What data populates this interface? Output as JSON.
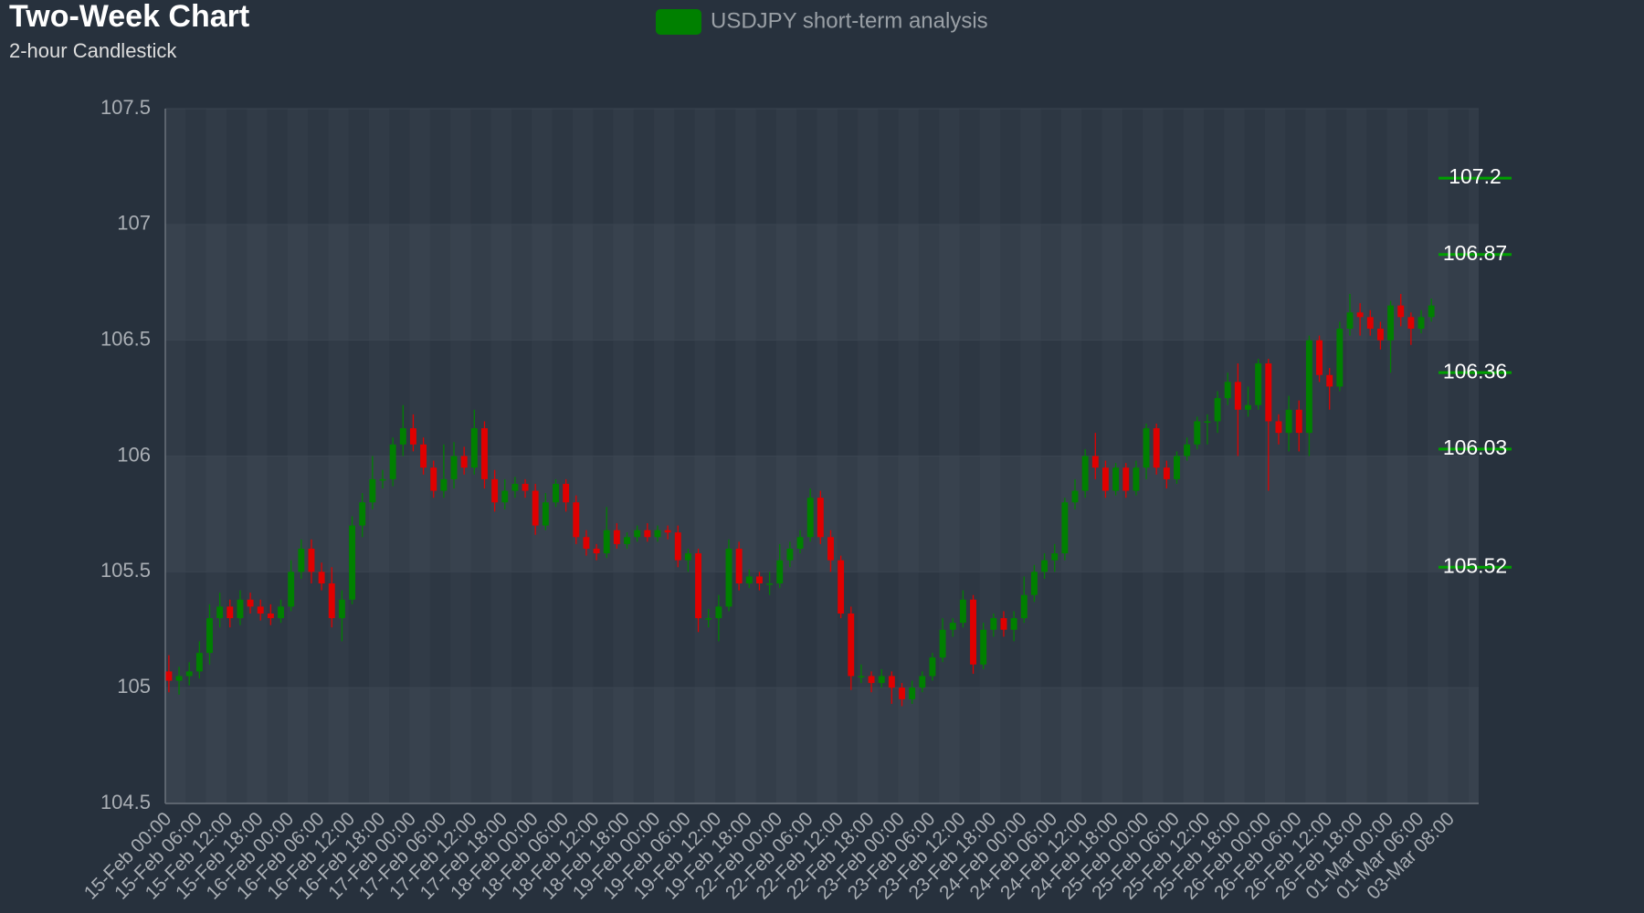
{
  "chart_data": {
    "type": "candlestick",
    "title": "Two-Week Chart",
    "subtitle": "2-hour Candlestick",
    "name": "USDJPY short-term analysis",
    "up_color": "#008000",
    "down_color": "#e00000",
    "level_color": "#00a000",
    "grid": true,
    "ylim": [
      104.5,
      107.5
    ],
    "yticks": [
      104.5,
      105,
      105.5,
      106,
      106.5,
      107,
      107.5
    ],
    "levels": [
      107.2,
      106.87,
      106.36,
      106.03,
      105.52
    ],
    "categories": [
      "15-Feb 00:00",
      null,
      null,
      "15-Feb 06:00",
      null,
      null,
      "15-Feb 12:00",
      null,
      null,
      "15-Feb 18:00",
      null,
      null,
      "16-Feb 00:00",
      null,
      null,
      "16-Feb 06:00",
      null,
      null,
      "16-Feb 12:00",
      null,
      null,
      "16-Feb 18:00",
      null,
      null,
      "17-Feb 00:00",
      null,
      null,
      "17-Feb 06:00",
      null,
      null,
      "17-Feb 12:00",
      null,
      null,
      "17-Feb 18:00",
      null,
      null,
      "18-Feb 00:00",
      null,
      null,
      "18-Feb 06:00",
      null,
      null,
      "18-Feb 12:00",
      null,
      null,
      "18-Feb 18:00",
      null,
      null,
      "19-Feb 00:00",
      null,
      null,
      "19-Feb 06:00",
      null,
      null,
      "19-Feb 12:00",
      null,
      null,
      "19-Feb 18:00",
      null,
      null,
      "22-Feb 00:00",
      null,
      null,
      "22-Feb 06:00",
      null,
      null,
      "22-Feb 12:00",
      null,
      null,
      "22-Feb 18:00",
      null,
      null,
      "23-Feb 00:00",
      null,
      null,
      "23-Feb 06:00",
      null,
      null,
      "23-Feb 12:00",
      null,
      null,
      "23-Feb 18:00",
      null,
      null,
      "24-Feb 00:00",
      null,
      null,
      "24-Feb 06:00",
      null,
      null,
      "24-Feb 12:00",
      null,
      null,
      "24-Feb 18:00",
      null,
      null,
      "25-Feb 00:00",
      null,
      null,
      "25-Feb 06:00",
      null,
      null,
      "25-Feb 12:00",
      null,
      null,
      "25-Feb 18:00",
      null,
      null,
      "26-Feb 00:00",
      null,
      null,
      "26-Feb 06:00",
      null,
      null,
      "26-Feb 12:00",
      null,
      null,
      "26-Feb 18:00",
      null,
      null,
      "01-Mar 00:00",
      null,
      null,
      "01-Mar 06:00",
      null,
      null,
      "03-Mar 08:00",
      null,
      null
    ],
    "open": [
      105.07,
      105.03,
      105.05,
      105.07,
      105.15,
      105.3,
      105.35,
      105.3,
      105.38,
      105.35,
      105.32,
      105.3,
      105.35,
      105.5,
      105.6,
      105.5,
      105.45,
      105.3,
      105.38,
      105.7,
      105.8,
      105.9,
      105.9,
      106.05,
      106.12,
      106.05,
      105.95,
      105.85,
      105.9,
      106.0,
      105.95,
      106.12,
      105.9,
      105.8,
      105.85,
      105.88,
      105.85,
      105.7,
      105.8,
      105.88,
      105.8,
      105.65,
      105.6,
      105.58,
      105.68,
      105.62,
      105.65,
      105.68,
      105.65,
      105.68,
      105.67,
      105.55,
      105.58,
      105.3,
      105.3,
      105.35,
      105.6,
      105.45,
      105.48,
      105.45,
      105.45,
      105.55,
      105.6,
      105.65,
      105.82,
      105.65,
      105.55,
      105.32,
      105.05,
      105.05,
      105.02,
      105.05,
      105.0,
      104.95,
      105.0,
      105.05,
      105.13,
      105.25,
      105.28,
      105.38,
      105.1,
      105.25,
      105.3,
      105.25,
      105.3,
      105.4,
      105.5,
      105.55,
      105.58,
      105.8,
      105.85,
      106.0,
      105.95,
      105.85,
      105.95,
      105.85,
      105.95,
      106.12,
      105.95,
      105.9,
      106.0,
      106.05,
      106.15,
      106.15,
      106.25,
      106.32,
      106.2,
      106.22,
      106.4,
      106.15,
      106.1,
      106.2,
      106.1,
      106.5,
      106.35,
      106.3,
      106.55,
      106.62,
      106.6,
      106.55,
      106.5,
      106.65,
      106.6,
      106.55,
      106.6,
      null,
      null,
      null,
      null
    ],
    "high": [
      105.14,
      105.09,
      105.11,
      105.2,
      105.36,
      105.41,
      105.38,
      105.42,
      105.41,
      105.38,
      105.36,
      105.38,
      105.55,
      105.64,
      105.64,
      105.54,
      105.52,
      105.42,
      105.74,
      105.84,
      106.0,
      105.94,
      106.08,
      106.22,
      106.18,
      106.08,
      105.98,
      106.05,
      106.06,
      106.04,
      106.2,
      106.15,
      105.94,
      105.9,
      105.91,
      105.9,
      105.88,
      105.84,
      105.9,
      105.9,
      105.83,
      105.68,
      105.62,
      105.78,
      105.71,
      105.67,
      105.7,
      105.71,
      105.7,
      105.7,
      105.7,
      105.6,
      105.6,
      105.34,
      105.4,
      105.64,
      105.63,
      105.51,
      105.5,
      105.5,
      105.62,
      105.63,
      105.68,
      105.86,
      105.85,
      105.68,
      105.57,
      105.35,
      105.1,
      105.07,
      105.08,
      105.07,
      105.02,
      105.03,
      105.07,
      105.15,
      105.3,
      105.3,
      105.42,
      105.4,
      105.28,
      105.32,
      105.33,
      105.33,
      105.48,
      105.53,
      105.58,
      105.62,
      105.82,
      105.9,
      106.03,
      106.1,
      105.98,
      105.97,
      105.97,
      105.98,
      106.14,
      106.14,
      105.98,
      106.02,
      106.08,
      106.17,
      106.18,
      106.28,
      106.36,
      106.4,
      106.3,
      106.42,
      106.42,
      106.18,
      106.26,
      106.24,
      106.52,
      106.52,
      106.38,
      106.58,
      106.7,
      106.66,
      106.63,
      106.58,
      106.67,
      106.7,
      106.62,
      106.63,
      106.68,
      null,
      null,
      null,
      null
    ],
    "low": [
      104.98,
      104.97,
      105.01,
      105.04,
      105.1,
      105.26,
      105.26,
      105.27,
      105.32,
      105.29,
      105.27,
      105.28,
      105.33,
      105.47,
      105.45,
      105.42,
      105.26,
      105.2,
      105.36,
      105.65,
      105.77,
      105.86,
      105.87,
      106.0,
      106.02,
      105.92,
      105.82,
      105.82,
      105.86,
      105.92,
      105.92,
      105.86,
      105.76,
      105.77,
      105.82,
      105.82,
      105.66,
      105.68,
      105.78,
      105.76,
      105.62,
      105.57,
      105.55,
      105.56,
      105.6,
      105.6,
      105.63,
      105.63,
      105.63,
      105.64,
      105.52,
      105.5,
      105.24,
      105.26,
      105.2,
      105.33,
      105.42,
      105.43,
      105.42,
      105.4,
      105.43,
      105.52,
      105.58,
      105.63,
      105.62,
      105.5,
      105.3,
      104.99,
      105.02,
      104.98,
      105.0,
      104.93,
      104.92,
      104.93,
      104.98,
      105.03,
      105.11,
      105.22,
      105.26,
      105.06,
      105.08,
      105.22,
      105.22,
      105.2,
      105.28,
      105.37,
      105.47,
      105.5,
      105.55,
      105.77,
      105.82,
      105.9,
      105.82,
      105.83,
      105.82,
      105.83,
      105.9,
      105.92,
      105.86,
      105.88,
      105.98,
      106.03,
      106.05,
      106.1,
      106.22,
      106.0,
      106.17,
      106.2,
      105.85,
      106.05,
      106.02,
      106.02,
      106.0,
      106.32,
      106.2,
      106.28,
      106.52,
      106.52,
      106.52,
      106.46,
      106.36,
      106.56,
      106.48,
      106.53,
      106.58,
      null,
      null,
      null,
      null
    ],
    "close": [
      105.03,
      105.05,
      105.07,
      105.15,
      105.3,
      105.35,
      105.3,
      105.38,
      105.35,
      105.32,
      105.3,
      105.35,
      105.5,
      105.6,
      105.5,
      105.45,
      105.3,
      105.38,
      105.7,
      105.8,
      105.9,
      105.9,
      106.05,
      106.12,
      106.05,
      105.95,
      105.85,
      105.9,
      106.0,
      105.95,
      106.12,
      105.9,
      105.8,
      105.85,
      105.88,
      105.85,
      105.7,
      105.8,
      105.88,
      105.8,
      105.65,
      105.6,
      105.58,
      105.68,
      105.62,
      105.65,
      105.68,
      105.65,
      105.68,
      105.67,
      105.55,
      105.58,
      105.3,
      105.3,
      105.35,
      105.6,
      105.45,
      105.48,
      105.45,
      105.45,
      105.55,
      105.6,
      105.65,
      105.82,
      105.65,
      105.55,
      105.32,
      105.05,
      105.05,
      105.02,
      105.05,
      105.0,
      104.95,
      105.0,
      105.05,
      105.13,
      105.25,
      105.28,
      105.38,
      105.1,
      105.25,
      105.3,
      105.25,
      105.3,
      105.4,
      105.5,
      105.55,
      105.58,
      105.8,
      105.85,
      106.0,
      105.95,
      105.85,
      105.95,
      105.85,
      105.95,
      106.12,
      105.95,
      105.9,
      106.0,
      106.05,
      106.15,
      106.15,
      106.25,
      106.32,
      106.2,
      106.22,
      106.4,
      106.15,
      106.1,
      106.2,
      106.1,
      106.5,
      106.35,
      106.3,
      106.55,
      106.62,
      106.6,
      106.55,
      106.5,
      106.65,
      106.6,
      106.55,
      106.6,
      106.65,
      null,
      null,
      null,
      null
    ]
  }
}
